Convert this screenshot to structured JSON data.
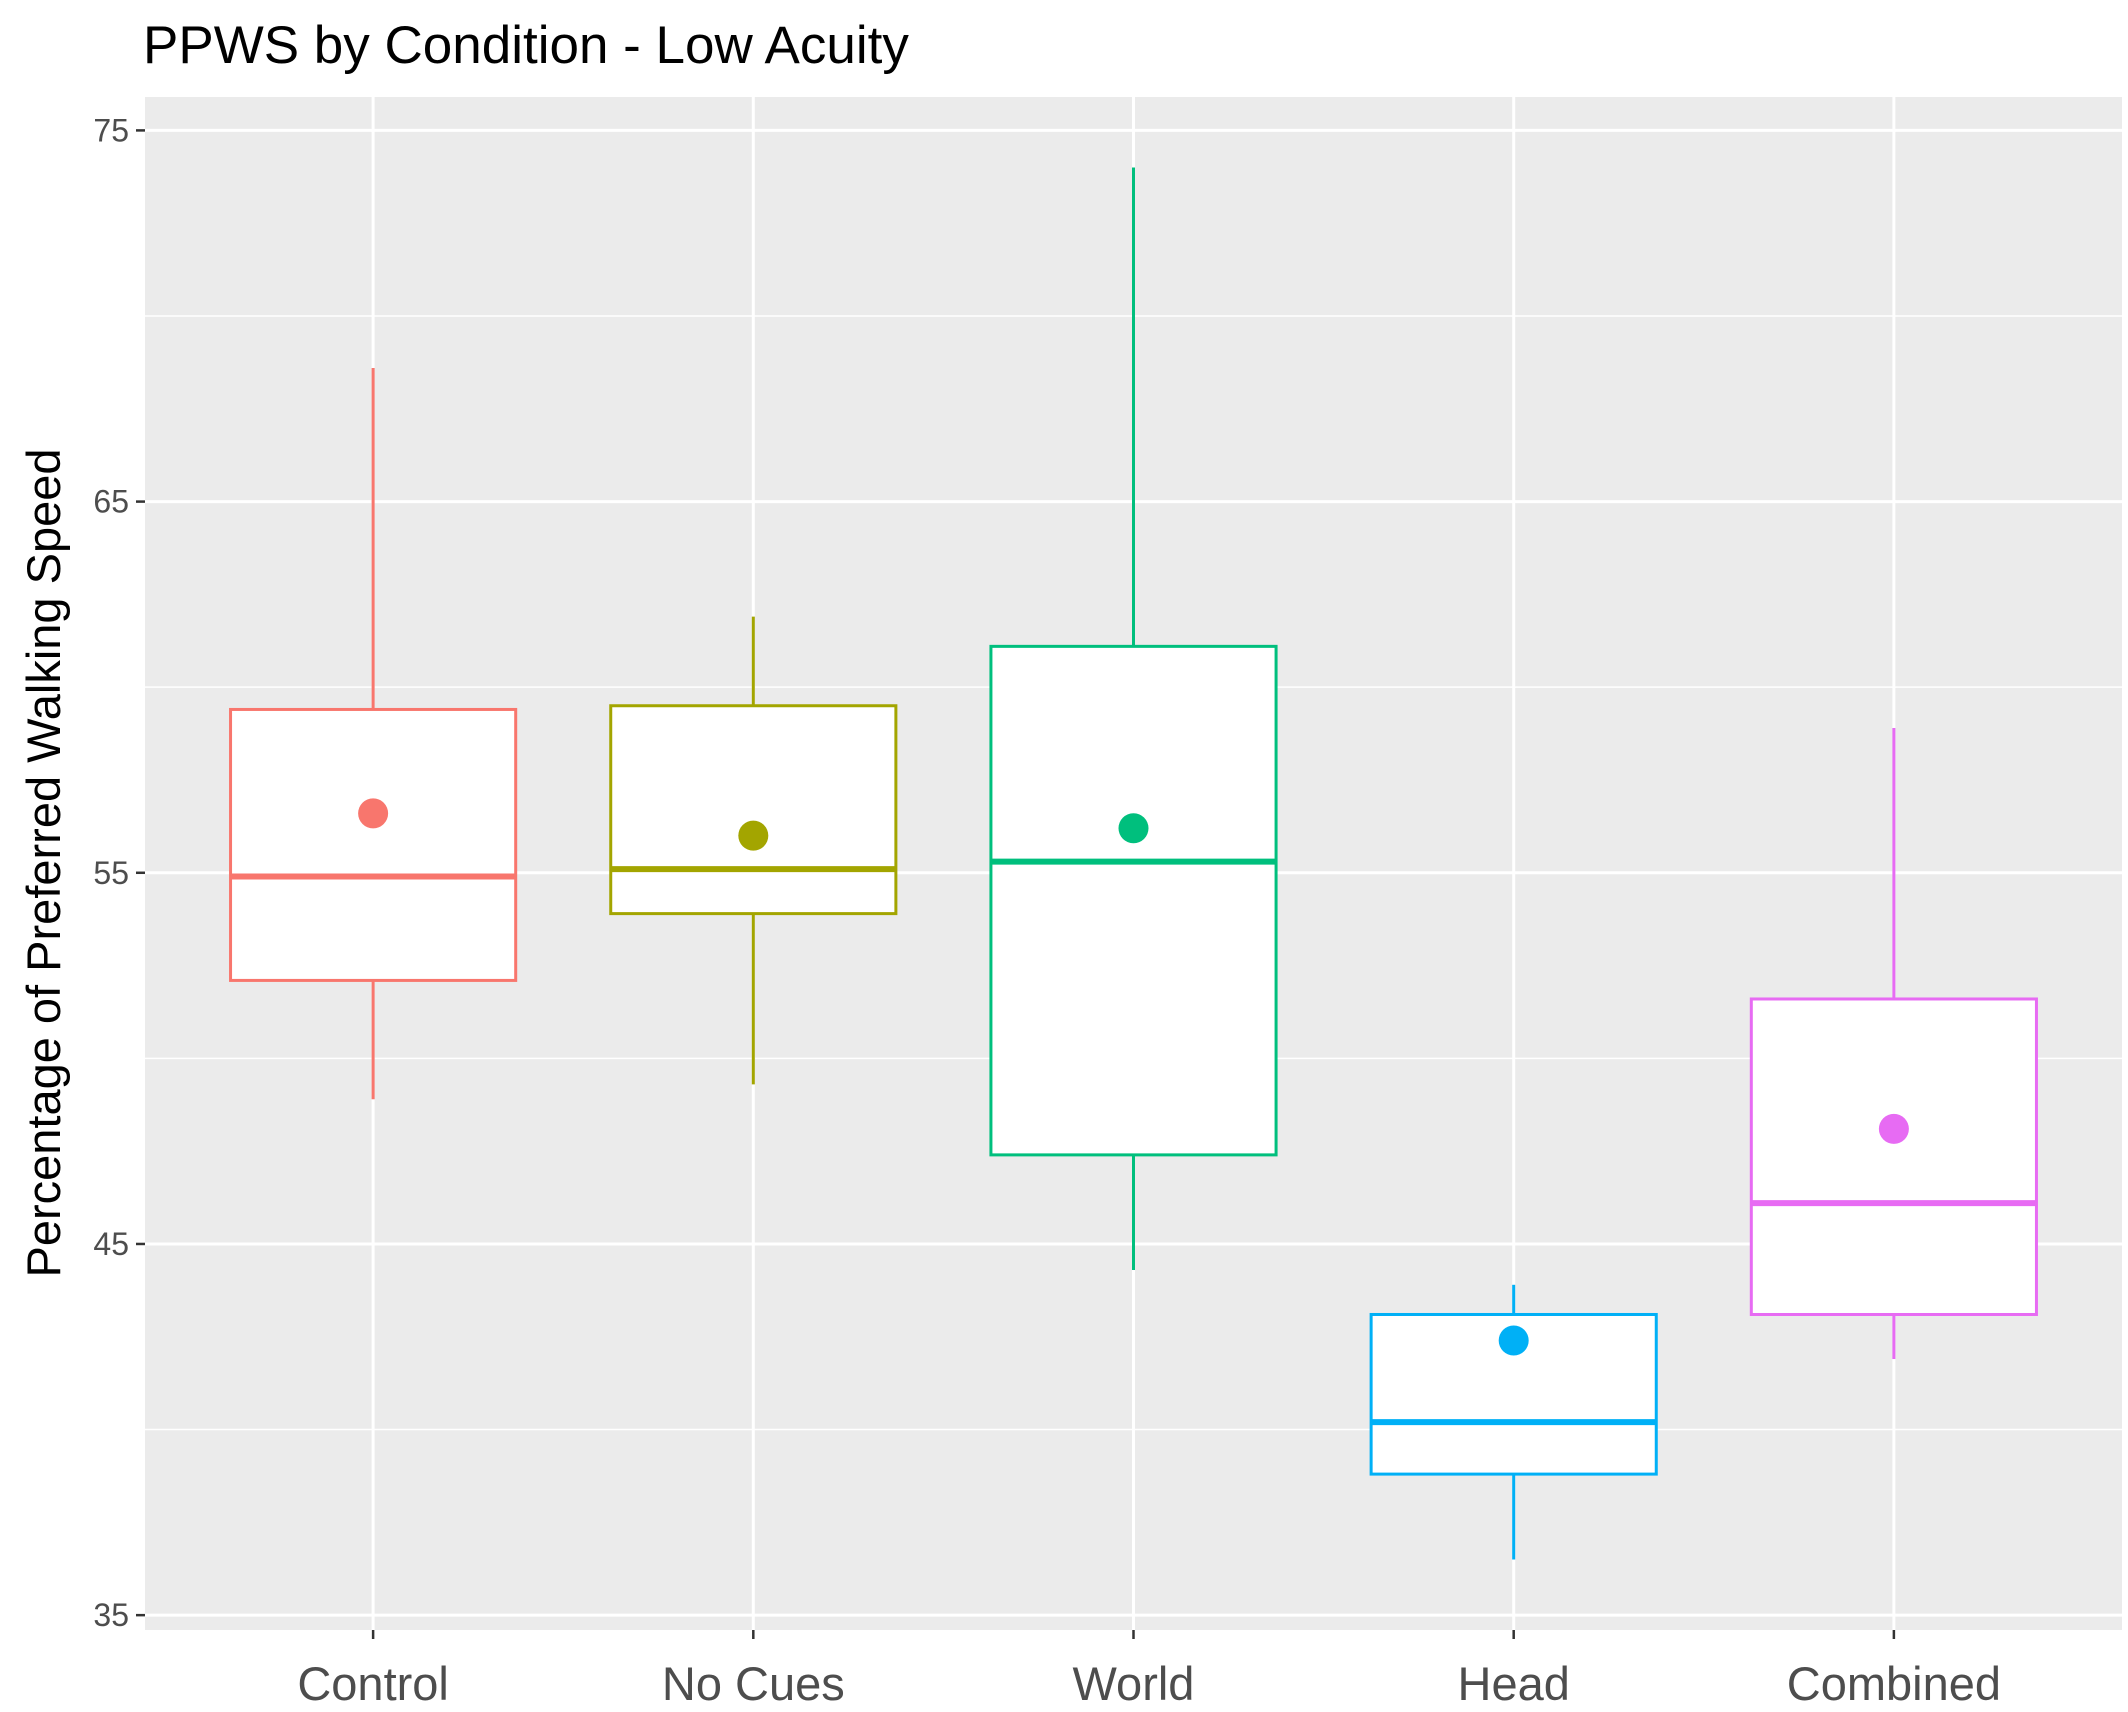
{
  "chart_data": {
    "type": "boxplot",
    "title": "PPWS by Condition - Low Acuity",
    "xlabel": "",
    "ylabel": "Percentage of Preferred Walking Speed",
    "ylim": [
      34.6,
      75.9
    ],
    "yticks": [
      35,
      45,
      55,
      65,
      75
    ],
    "grid": true,
    "legend": "none",
    "categories": [
      "Control",
      "No Cues",
      "World",
      "Head",
      "Combined"
    ],
    "boxes": [
      {
        "category": "Control",
        "color": "#F8766D",
        "whisker_low": 48.9,
        "q1": 52.1,
        "median": 54.9,
        "q3": 59.4,
        "whisker_high": 68.6,
        "mean": 56.6
      },
      {
        "category": "No Cues",
        "color": "#A3A500",
        "whisker_low": 49.3,
        "q1": 53.9,
        "median": 55.1,
        "q3": 59.5,
        "whisker_high": 61.9,
        "mean": 56.0
      },
      {
        "category": "World",
        "color": "#00BF7D",
        "whisker_low": 44.3,
        "q1": 47.4,
        "median": 55.3,
        "q3": 61.1,
        "whisker_high": 74.0,
        "mean": 56.2
      },
      {
        "category": "Head",
        "color": "#00B0F6",
        "whisker_low": 36.5,
        "q1": 38.8,
        "median": 40.2,
        "q3": 43.1,
        "whisker_high": 43.9,
        "mean": 42.4
      },
      {
        "category": "Combined",
        "color": "#E76BF3",
        "whisker_low": 41.9,
        "q1": 43.1,
        "median": 46.1,
        "q3": 51.6,
        "whisker_high": 58.9,
        "mean": 48.1
      }
    ]
  }
}
